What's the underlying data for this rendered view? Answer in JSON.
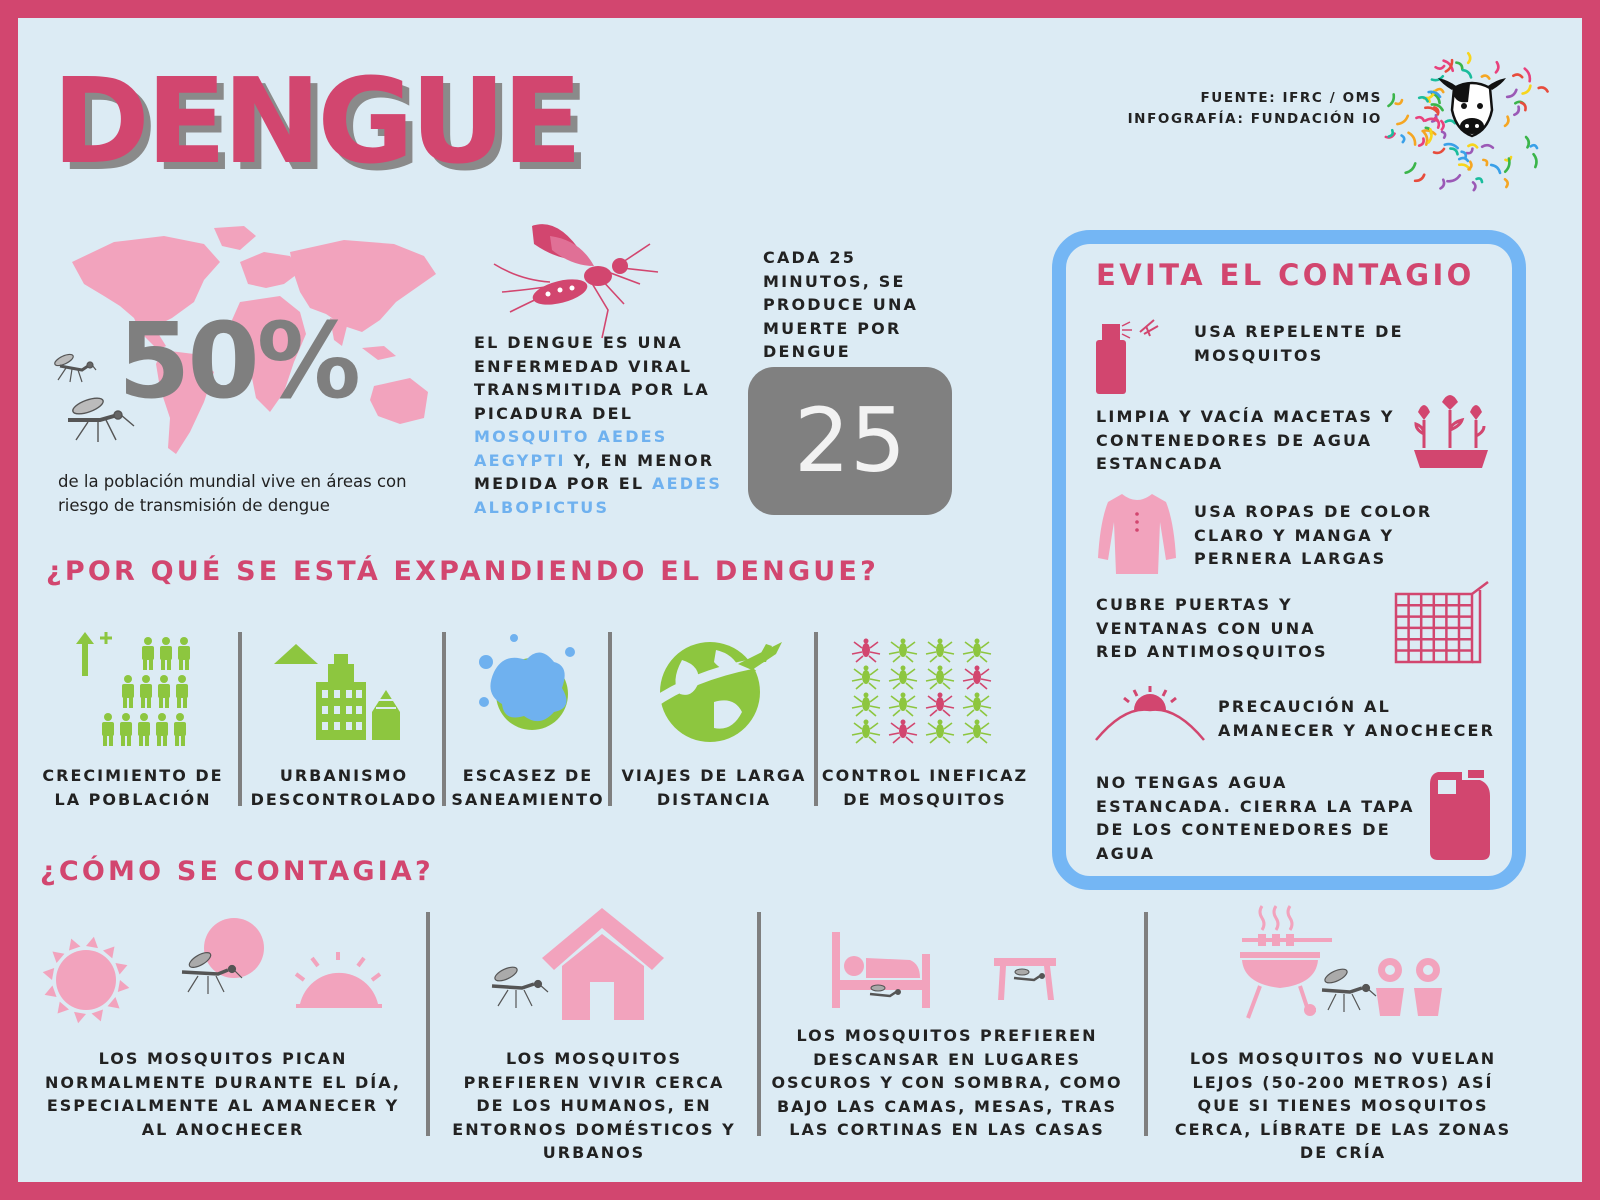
{
  "title": "DENGUE",
  "source": {
    "line1": "FUENTE: IFRC / OMS",
    "line2": "INFOGRAFÍA: FUNDACIÓN IO"
  },
  "stat": {
    "value": "50%",
    "caption": "de la población mundial vive en áreas con riesgo de transmisión de dengue"
  },
  "definition": {
    "part1": "EL DENGUE ES UNA ENFERMEDAD VIRAL TRANSMITIDA POR LA PICADURA DEL ",
    "highlight1": "MOSQUITO AEDES AEGYPTI",
    "part2": " Y, EN MENOR MEDIDA POR EL ",
    "highlight2": "AEDES ALBOPICTUS"
  },
  "death": {
    "text": "CADA 25 MINUTOS, SE PRODUCE UNA MUERTE POR DENGUE",
    "counter": "25"
  },
  "why": {
    "heading": "¿POR QUÉ SE ESTÁ EXPANDIENDO EL DENGUE?",
    "items": [
      {
        "line1": "CRECIMIENTO DE",
        "line2": "LA POBLACIÓN"
      },
      {
        "line1": "URBANISMO",
        "line2": "DESCONTROLADO"
      },
      {
        "line1": "ESCASEZ DE",
        "line2": "SANEAMIENTO"
      },
      {
        "line1": "VIAJES DE LARGA",
        "line2": "DISTANCIA"
      },
      {
        "line1": "CONTROL INEFICAZ",
        "line2": "DE MOSQUITOS"
      }
    ]
  },
  "prevention": {
    "heading": "EVITA EL CONTAGIO",
    "tips": [
      "USA REPELENTE DE MOSQUITOS",
      "LIMPIA Y VACÍA MACETAS Y CONTENEDORES DE AGUA ESTANCADA",
      "USA ROPAS DE COLOR CLARO Y MANGA Y PERNERA LARGAS",
      "CUBRE PUERTAS Y VENTANAS CON UNA RED ANTIMOSQUITOS",
      "PRECAUCIÓN AL AMANECER Y ANOCHECER",
      "NO TENGAS AGUA ESTANCADA. CIERRA LA TAPA DE LOS CONTENEDORES DE AGUA"
    ]
  },
  "how": {
    "heading": "¿CÓMO SE CONTAGIA?",
    "items": [
      "LOS MOSQUITOS PICAN NORMALMENTE DURANTE EL DÍA, ESPECIALMENTE AL AMANECER Y AL ANOCHECER",
      "LOS MOSQUITOS PREFIEREN VIVIR CERCA DE LOS HUMANOS, EN ENTORNOS DOMÉSTICOS Y URBANOS",
      "LOS MOSQUITOS PREFIEREN DESCANSAR EN LUGARES OSCUROS Y CON SOMBRA, COMO BAJO LAS CAMAS, MESAS, TRAS LAS CORTINAS EN LAS CASAS",
      "LOS MOSQUITOS NO VUELAN LEJOS (50-200 METROS) ASÍ QUE SI TIENES MOSQUITOS CERCA, LÍBRATE DE LAS ZONAS DE CRÍA"
    ]
  },
  "colors": {
    "accent": "#d2466f",
    "pink_light": "#f2a3bd",
    "green": "#8dc63f",
    "blue": "#74b6f4",
    "gray": "#808080",
    "background": "#dcebf4"
  }
}
